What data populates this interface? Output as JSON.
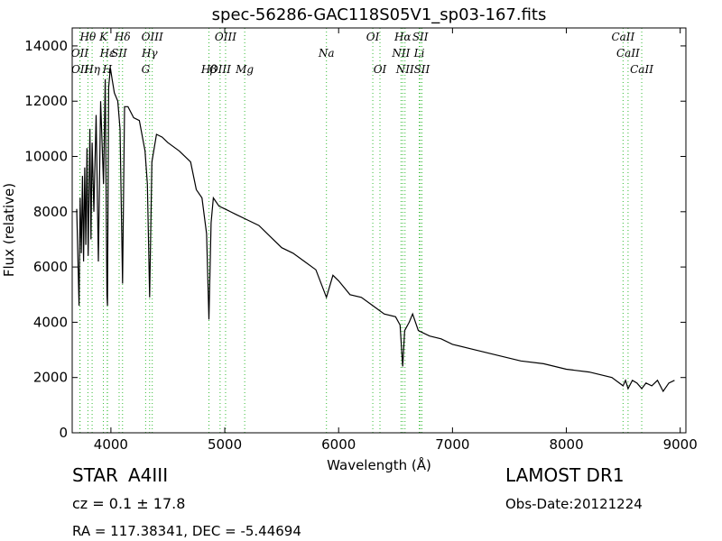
{
  "chart_data": {
    "type": "line",
    "title": "spec-56286-GAC118S05V1_sp03-167.fits",
    "xlabel": "Wavelength (Å)",
    "ylabel": "Flux (relative)",
    "x": [
      3700,
      3720,
      3730,
      3740,
      3750,
      3760,
      3770,
      3780,
      3790,
      3800,
      3815,
      3825,
      3835,
      3850,
      3870,
      3890,
      3910,
      3935,
      3950,
      3965,
      3970,
      3980,
      3995,
      4010,
      4030,
      4060,
      4080,
      4102,
      4120,
      4150,
      4200,
      4250,
      4300,
      4320,
      4340,
      4360,
      4400,
      4450,
      4500,
      4600,
      4700,
      4750,
      4800,
      4840,
      4861,
      4880,
      4900,
      4950,
      5000,
      5100,
      5200,
      5300,
      5400,
      5500,
      5600,
      5700,
      5800,
      5893,
      5950,
      6000,
      6100,
      6200,
      6300,
      6400,
      6500,
      6540,
      6563,
      6580,
      6620,
      6650,
      6700,
      6750,
      6800,
      6900,
      7000,
      7200,
      7400,
      7600,
      7800,
      8000,
      8200,
      8400,
      8498,
      8520,
      8542,
      8580,
      8620,
      8662,
      8700,
      8750,
      8800,
      8850,
      8900,
      8950
    ],
    "values": [
      8100,
      4600,
      8500,
      6500,
      9300,
      6200,
      9600,
      6800,
      10300,
      6400,
      11000,
      7000,
      10500,
      8000,
      11500,
      6200,
      12000,
      9000,
      12800,
      5000,
      4600,
      12500,
      13200,
      12800,
      12300,
      12000,
      11000,
      5400,
      11800,
      11800,
      11400,
      11300,
      10200,
      9000,
      4900,
      9800,
      10800,
      10700,
      10500,
      10200,
      9800,
      8800,
      8500,
      7200,
      4100,
      7600,
      8500,
      8200,
      8100,
      7900,
      7700,
      7500,
      7100,
      6700,
      6500,
      6200,
      5900,
      4900,
      5700,
      5500,
      5000,
      4900,
      4600,
      4300,
      4200,
      3900,
      2400,
      3700,
      4000,
      4300,
      3700,
      3600,
      3500,
      3400,
      3200,
      3000,
      2800,
      2600,
      2500,
      2300,
      2200,
      2000,
      1700,
      1900,
      1600,
      1900,
      1800,
      1600,
      1800,
      1700,
      1900,
      1500,
      1800,
      1900
    ],
    "color": "#000000",
    "xlim": [
      3660,
      9050
    ],
    "ylim": [
      0,
      14650
    ],
    "xticks": [
      4000,
      5000,
      6000,
      7000,
      8000,
      9000
    ],
    "yticks": [
      0,
      2000,
      4000,
      6000,
      8000,
      10000,
      12000,
      14000
    ],
    "line_color": "#33bb33",
    "spectral_lines": {
      "upper": [
        {
          "label": "Hθ",
          "wavelength": 3798
        },
        {
          "label": "K",
          "wavelength": 3934
        },
        {
          "label": "Hδ",
          "wavelength": 4102
        },
        {
          "label": "OIII",
          "wavelength": 4363
        },
        {
          "label": "OIII",
          "wavelength": 5007
        },
        {
          "label": "OI",
          "wavelength": 6300
        },
        {
          "label": "Hα",
          "wavelength": 6563
        },
        {
          "label": "SII",
          "wavelength": 6717
        },
        {
          "label": "CaII",
          "wavelength": 8498
        }
      ],
      "middle": [
        {
          "label": "OII",
          "wavelength": 3727
        },
        {
          "label": "Hε",
          "wavelength": 3970
        },
        {
          "label": "SII",
          "wavelength": 4072
        },
        {
          "label": "Hγ",
          "wavelength": 4340
        },
        {
          "label": "Na",
          "wavelength": 5893
        },
        {
          "label": "NII",
          "wavelength": 6548
        },
        {
          "label": "Li",
          "wavelength": 6708
        },
        {
          "label": "CaII",
          "wavelength": 8542
        }
      ],
      "lower": [
        {
          "label": "OII",
          "wavelength": 3729
        },
        {
          "label": "Hη",
          "wavelength": 3835
        },
        {
          "label": "H",
          "wavelength": 3968
        },
        {
          "label": "G",
          "wavelength": 4305
        },
        {
          "label": "Hβ",
          "wavelength": 4861
        },
        {
          "label": "OIII",
          "wavelength": 4959
        },
        {
          "label": "Mg",
          "wavelength": 5175
        },
        {
          "label": "OI",
          "wavelength": 6363
        },
        {
          "label": "NII",
          "wavelength": 6583
        },
        {
          "label": "SII",
          "wavelength": 6731
        },
        {
          "label": "CaII",
          "wavelength": 8662
        }
      ]
    }
  },
  "footer": {
    "object": "STAR",
    "subclass": "A4III",
    "survey": "LAMOST DR1",
    "redshift": "cz = 0.1 ± 17.8",
    "date": "Obs-Date:20121224",
    "position": "RA = 117.38341, DEC = -5.44694"
  }
}
